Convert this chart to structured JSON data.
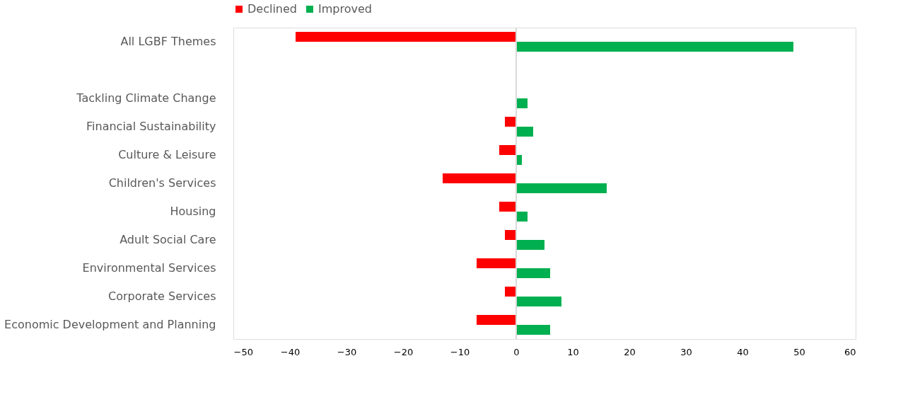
{
  "chart_data": {
    "type": "bar",
    "orientation": "horizontal",
    "categories": [
      "All LGBF Themes",
      null,
      "Tackling Climate Change",
      "Financial Sustainability",
      "Culture & Leisure",
      "Children's Services",
      "Housing",
      "Adult Social Care",
      "Environmental Services",
      "Corporate Services",
      "Economic Development and Planning"
    ],
    "series": [
      {
        "name": "Declined",
        "color": "#ff0000",
        "values": [
          -39,
          null,
          0,
          -2,
          -3,
          -13,
          -3,
          -2,
          -7,
          -2,
          -7
        ]
      },
      {
        "name": "Improved",
        "color": "#00b050",
        "values": [
          49,
          null,
          2,
          3,
          1,
          16,
          2,
          5,
          6,
          8,
          6
        ]
      }
    ],
    "xlim": [
      -50,
      60
    ],
    "xticks": [
      -50,
      -40,
      -30,
      -20,
      -10,
      0,
      10,
      20,
      30,
      40,
      50,
      60
    ],
    "ref_lines": [
      {
        "axis": "x",
        "value": 0,
        "color": "#d9d9d9"
      }
    ],
    "grid": false,
    "legend": "top"
  }
}
